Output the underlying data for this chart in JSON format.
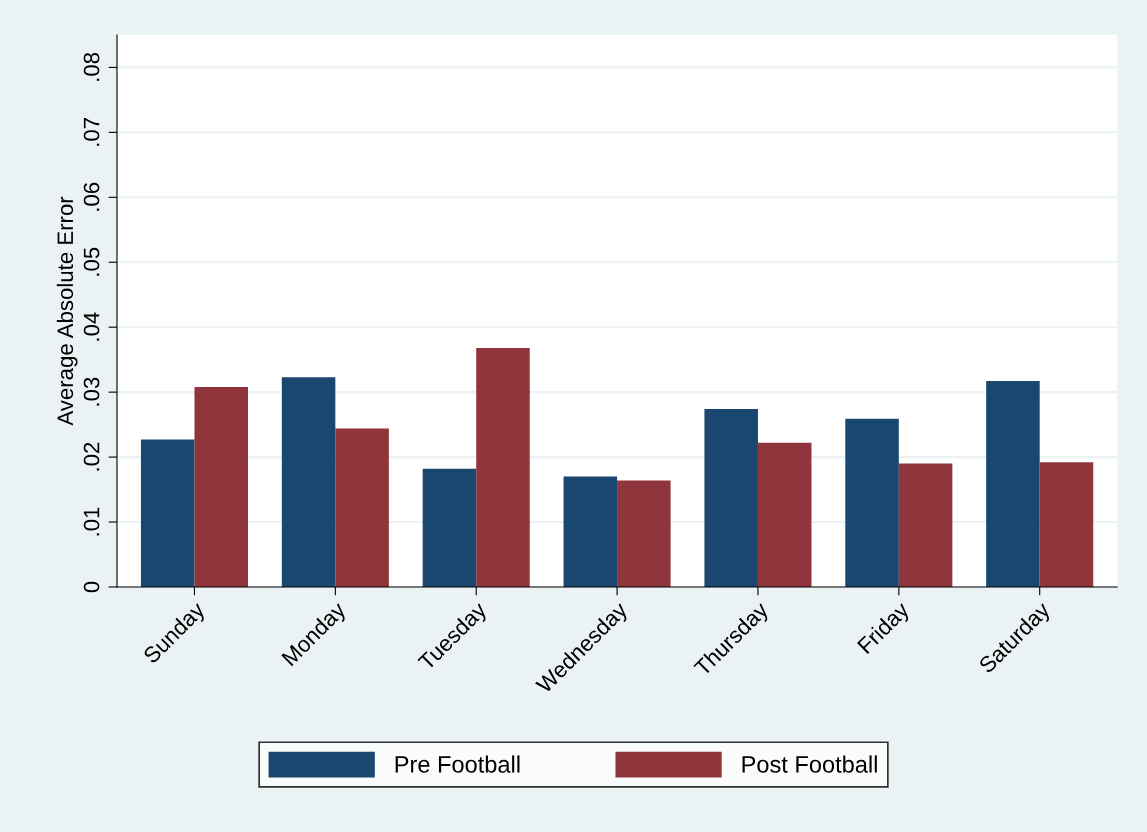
{
  "chart_data": {
    "type": "bar",
    "ylabel": "Average Absolute Error",
    "categories": [
      "Sunday",
      "Monday",
      "Tuesday",
      "Wednesday",
      "Thursday",
      "Friday",
      "Saturday"
    ],
    "series": [
      {
        "name": "Pre Football",
        "color": "#1a476f",
        "values": [
          0.0227,
          0.0323,
          0.0182,
          0.017,
          0.0274,
          0.0259,
          0.0317
        ]
      },
      {
        "name": "Post Football",
        "color": "#90353b",
        "values": [
          0.0308,
          0.0244,
          0.0368,
          0.0164,
          0.0222,
          0.019,
          0.0192
        ]
      }
    ],
    "ylim": [
      0,
      0.085
    ],
    "yticks": [
      0,
      {
        "value": 0.01,
        "label": ".01"
      },
      {
        "value": 0.02,
        "label": ".02"
      },
      {
        "value": 0.03,
        "label": ".03"
      },
      {
        "value": 0.04,
        "label": ".04"
      },
      {
        "value": 0.05,
        "label": ".05"
      },
      {
        "value": 0.06,
        "label": ".06"
      },
      {
        "value": 0.07,
        "label": ".07"
      },
      {
        "value": 0.08,
        "label": ".08"
      }
    ],
    "grid": "y",
    "legend": "bottom"
  }
}
